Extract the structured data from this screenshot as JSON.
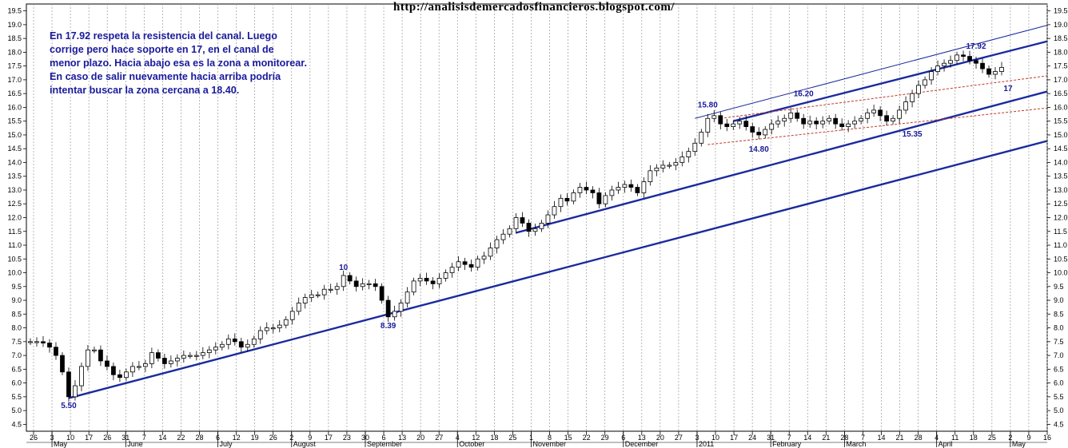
{
  "header": {
    "url": "http://analisisdemercadosfinancieros.blogspot.com/"
  },
  "commentary": {
    "lines": [
      "En 17.92 respeta la resistencia del canal. Luego",
      "corrige pero hace soporte en 17, en el canal de",
      "menor plazo. Hacia abajo esa es la zona a monitorear.",
      "En caso de salir nuevamente hacia arriba podría",
      "intentar buscar la zona cercana a 18.40."
    ]
  },
  "chart_data": {
    "type": "candlestick",
    "title": "",
    "xlabel": "",
    "ylabel": "",
    "ylim": [
      4.25,
      19.75
    ],
    "grid": true,
    "y_ticks": [
      4.5,
      5.0,
      5.5,
      6.0,
      6.5,
      7.0,
      7.5,
      8.0,
      8.5,
      9.0,
      9.5,
      10.0,
      10.5,
      11.0,
      11.5,
      12.0,
      12.5,
      13.0,
      13.5,
      14.0,
      14.5,
      15.0,
      15.5,
      16.0,
      16.5,
      17.0,
      17.5,
      18.0,
      18.5,
      19.0,
      19.5
    ],
    "x_day_labels": [
      "26",
      "3",
      "10",
      "17",
      "26",
      "31",
      "7",
      "14",
      "22",
      "28",
      "6",
      "12",
      "19",
      "26",
      "2",
      "9",
      "17",
      "23",
      "30",
      "6",
      "13",
      "20",
      "27",
      "4",
      "12",
      "18",
      "25",
      "1",
      "8",
      "15",
      "22",
      "29",
      "6",
      "13",
      "20",
      "27",
      "3",
      "10",
      "17",
      "24",
      "31",
      "7",
      "14",
      "21",
      "28",
      "7",
      "14",
      "21",
      "28",
      "4",
      "11",
      "18",
      "25",
      "2",
      "9",
      "16"
    ],
    "x_month_labels": [
      {
        "label": "May",
        "at": 1
      },
      {
        "label": "June",
        "at": 5
      },
      {
        "label": "July",
        "at": 10
      },
      {
        "label": "August",
        "at": 14
      },
      {
        "label": "September",
        "at": 18
      },
      {
        "label": "October",
        "at": 23
      },
      {
        "label": "November",
        "at": 27
      },
      {
        "label": "December",
        "at": 32
      },
      {
        "label": "2011",
        "at": 36
      },
      {
        "label": "February",
        "at": 40
      },
      {
        "label": "March",
        "at": 44
      },
      {
        "label": "April",
        "at": 49
      },
      {
        "label": "May",
        "at": 53
      }
    ],
    "series": [
      {
        "values": [
          7.5,
          7.5,
          7.45,
          7.3,
          7.0,
          6.4,
          5.5,
          5.9,
          6.6,
          7.2,
          7.2,
          6.8,
          6.6,
          6.3,
          6.2,
          6.4,
          6.6,
          6.6,
          6.7,
          7.1,
          6.9,
          6.7,
          6.8,
          6.9,
          7.0,
          7.0,
          7.0,
          7.1,
          7.2,
          7.3,
          7.4,
          7.6,
          7.5,
          7.3,
          7.4,
          7.6,
          7.9,
          8.0,
          8.0,
          8.1,
          8.3,
          8.6,
          8.9,
          9.1,
          9.2,
          9.2,
          9.4,
          9.4,
          9.5,
          9.9,
          9.7,
          9.5,
          9.6,
          9.6,
          9.5,
          9.0,
          8.4,
          8.6,
          8.9,
          9.3,
          9.7,
          9.8,
          9.7,
          9.6,
          9.8,
          10.0,
          10.2,
          10.4,
          10.3,
          10.2,
          10.5,
          10.6,
          10.9,
          11.2,
          11.4,
          11.6,
          12.0,
          11.8,
          11.5,
          11.6,
          11.8,
          12.1,
          12.4,
          12.7,
          12.6,
          12.9,
          13.1,
          13.0,
          12.9,
          12.5,
          12.8,
          13.0,
          13.1,
          13.2,
          13.1,
          12.9,
          13.3,
          13.7,
          13.8,
          13.9,
          13.9,
          14.0,
          14.2,
          14.4,
          14.7,
          15.1,
          15.6,
          15.7,
          15.4,
          15.3,
          15.4,
          15.5,
          15.3,
          15.1,
          15.0,
          15.2,
          15.4,
          15.5,
          15.6,
          15.8,
          15.6,
          15.4,
          15.5,
          15.4,
          15.5,
          15.6,
          15.4,
          15.3,
          15.4,
          15.5,
          15.6,
          15.8,
          15.9,
          15.7,
          15.5,
          15.6,
          15.9,
          16.2,
          16.5,
          16.8,
          17.0,
          17.3,
          17.5,
          17.6,
          17.7,
          17.9,
          17.85,
          17.7,
          17.6,
          17.4,
          17.2,
          17.3,
          17.45
        ]
      },
      {
        "name": "",
        "values": []
      }
    ],
    "annotations": [
      {
        "text": "5.50",
        "x": 6,
        "y": 5.5
      },
      {
        "text": "10",
        "x": 49,
        "y": 9.9
      },
      {
        "text": "8.39",
        "x": 56,
        "y": 8.39
      },
      {
        "text": "15.80",
        "x": 106,
        "y": 15.8
      },
      {
        "text": "14.80",
        "x": 114,
        "y": 14.8
      },
      {
        "text": "16.20",
        "x": 121,
        "y": 16.2
      },
      {
        "text": "15.35",
        "x": 138,
        "y": 15.35
      },
      {
        "text": "17.92",
        "x": 148,
        "y": 17.92
      },
      {
        "text": "17",
        "x": 153,
        "y": 17.0
      }
    ],
    "trend_lines": [
      {
        "color": "#1a2a9e",
        "width": 2.4,
        "from": [
          6,
          5.45
        ],
        "to": [
          166,
          15.2
        ],
        "extend": true
      },
      {
        "color": "#1a2a9e",
        "width": 2.4,
        "from": [
          76,
          11.45
        ],
        "to": [
          166,
          17.0
        ],
        "extend": true
      },
      {
        "color": "#1a2a9e",
        "width": 2.4,
        "from": [
          110,
          15.5
        ],
        "to": [
          166,
          18.8
        ],
        "extend": true
      },
      {
        "color": "#1a2a9e",
        "width": 1.0,
        "from": [
          104,
          15.6
        ],
        "to": [
          166,
          19.4
        ],
        "extend": true
      },
      {
        "color": "#c0392b",
        "width": 1.0,
        "dash": "3,2",
        "from": [
          106,
          14.65
        ],
        "to": [
          166,
          16.15
        ],
        "extend": true
      },
      {
        "color": "#c0392b",
        "width": 1.0,
        "dash": "3,2",
        "from": [
          108,
          15.6
        ],
        "to": [
          166,
          17.35
        ],
        "extend": true
      }
    ],
    "colors": {
      "candle": "#000000",
      "grid": "#9a9a9a",
      "trend": "#1a2a9e",
      "channel": "#c0392b",
      "label": "#1a1a9c"
    }
  }
}
